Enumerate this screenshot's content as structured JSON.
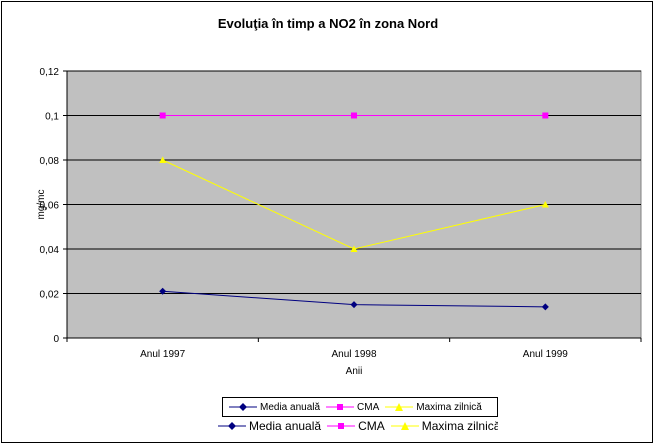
{
  "chart_data": {
    "type": "line",
    "title": "Evoluţia în timp a NO2 în zona Nord",
    "xlabel": "Anii",
    "ylabel": "mg/mc",
    "categories": [
      "Anul 1997",
      "Anul 1998",
      "Anul 1999"
    ],
    "ylim": [
      0,
      0.12
    ],
    "yticks": [
      "0",
      "0,02",
      "0,04",
      "0,06",
      "0,08",
      "0,1",
      "0,12"
    ],
    "grid": true,
    "legend_position": "bottom",
    "plot_background": "#c0c0c0",
    "series": [
      {
        "name": "Media anuală",
        "values": [
          0.021,
          0.015,
          0.014
        ],
        "color": "#000080",
        "marker": "diamond"
      },
      {
        "name": "CMA",
        "values": [
          0.1,
          0.1,
          0.1
        ],
        "color": "#ff00ff",
        "marker": "square"
      },
      {
        "name": "Maxima zilnică",
        "values": [
          0.08,
          0.04,
          0.06
        ],
        "color": "#ffff00",
        "marker": "triangle"
      }
    ]
  }
}
